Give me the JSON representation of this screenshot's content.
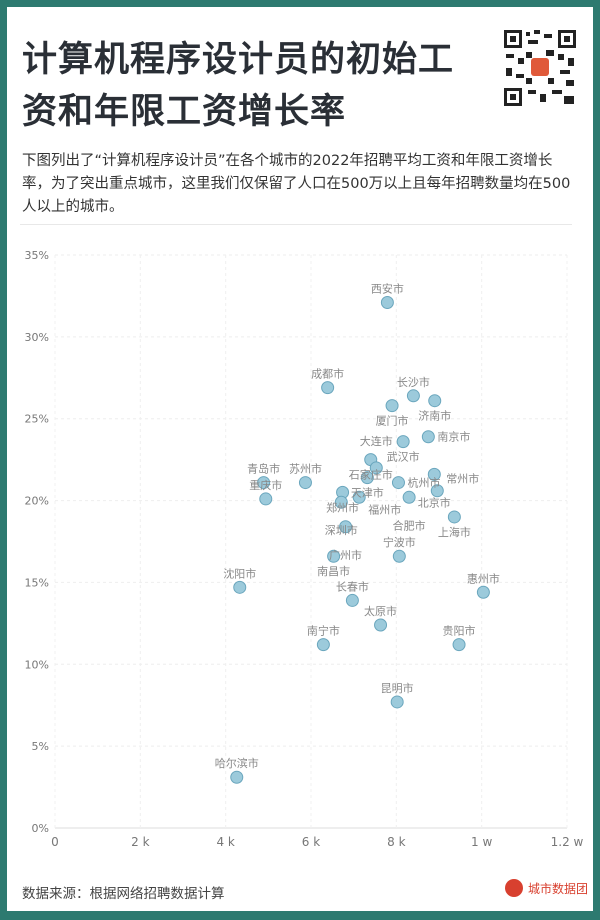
{
  "title": "计算机程序设计员的初始工资和年限工资增长率",
  "description": "下图列出了“计算机程序设计员”在各个城市的2022年招聘平均工资和年限工资增长率，为了突出重点城市，这里我们仅保留了人口在500万以上且每年招聘数量均在500人以上的城市。",
  "source": "数据来源：根据网络招聘数据计算",
  "brand": "城市数据团",
  "colors": {
    "border": "#2d7a70",
    "point_fill": "#9ccadb",
    "point_stroke": "#6aa6bd",
    "brand": "#d8402f"
  },
  "chart_data": {
    "type": "scatter",
    "xlim": [
      0,
      12000
    ],
    "ylim": [
      0,
      35
    ],
    "x_ticks": [
      {
        "v": 0,
        "label": "0"
      },
      {
        "v": 2000,
        "label": "2 k"
      },
      {
        "v": 4000,
        "label": "4 k"
      },
      {
        "v": 6000,
        "label": "6 k"
      },
      {
        "v": 8000,
        "label": "8 k"
      },
      {
        "v": 10000,
        "label": "1 w"
      },
      {
        "v": 12000,
        "label": "1.2 w"
      }
    ],
    "y_ticks": [
      {
        "v": 0,
        "label": "0%"
      },
      {
        "v": 5,
        "label": "5%"
      },
      {
        "v": 10,
        "label": "10%"
      },
      {
        "v": 15,
        "label": "15%"
      },
      {
        "v": 20,
        "label": "20%"
      },
      {
        "v": 25,
        "label": "25%"
      },
      {
        "v": 30,
        "label": "30%"
      },
      {
        "v": 35,
        "label": "35%"
      }
    ],
    "grid": true,
    "points": [
      {
        "label": "西安市",
        "x": 7790,
        "y": 32.1
      },
      {
        "label": "成都市",
        "x": 6390,
        "y": 26.9
      },
      {
        "label": "长沙市",
        "x": 8400,
        "y": 26.4
      },
      {
        "label": "厦门市",
        "x": 7900,
        "y": 25.8
      },
      {
        "label": "济南市",
        "x": 8900,
        "y": 26.1
      },
      {
        "label": "武汉市",
        "x": 8160,
        "y": 23.6
      },
      {
        "label": "南京市",
        "x": 8750,
        "y": 23.9
      },
      {
        "label": "石家庄市",
        "x": 7400,
        "y": 22.5
      },
      {
        "label": "大连市",
        "x": 7530,
        "y": 22.0
      },
      {
        "label": "天津市",
        "x": 7320,
        "y": 21.4
      },
      {
        "label": "苏州市",
        "x": 5870,
        "y": 21.1
      },
      {
        "label": "杭州市",
        "x": 8050,
        "y": 21.1
      },
      {
        "label": "北京市",
        "x": 8890,
        "y": 21.6
      },
      {
        "label": "郑州市",
        "x": 6740,
        "y": 20.5
      },
      {
        "label": "深圳市",
        "x": 6710,
        "y": 19.9
      },
      {
        "label": "福州市",
        "x": 7130,
        "y": 20.2
      },
      {
        "label": "合肥市",
        "x": 8300,
        "y": 20.2
      },
      {
        "label": "常州市",
        "x": 8960,
        "y": 20.6
      },
      {
        "label": "广州市",
        "x": 6810,
        "y": 18.4
      },
      {
        "label": "南昌市",
        "x": 6530,
        "y": 16.6
      },
      {
        "label": "宁波市",
        "x": 8070,
        "y": 16.6
      },
      {
        "label": "上海市",
        "x": 9360,
        "y": 19.0
      },
      {
        "label": "青岛市",
        "x": 4890,
        "y": 21.1
      },
      {
        "label": "重庆市",
        "x": 4940,
        "y": 20.1
      },
      {
        "label": "沈阳市",
        "x": 4330,
        "y": 14.7
      },
      {
        "label": "长春市",
        "x": 6970,
        "y": 13.9
      },
      {
        "label": "太原市",
        "x": 7630,
        "y": 12.4
      },
      {
        "label": "南宁市",
        "x": 6290,
        "y": 11.2
      },
      {
        "label": "惠州市",
        "x": 10040,
        "y": 14.4
      },
      {
        "label": "贵阳市",
        "x": 9470,
        "y": 11.2
      },
      {
        "label": "昆明市",
        "x": 8020,
        "y": 7.7
      },
      {
        "label": "哈尔滨市",
        "x": 4260,
        "y": 3.1
      }
    ]
  }
}
